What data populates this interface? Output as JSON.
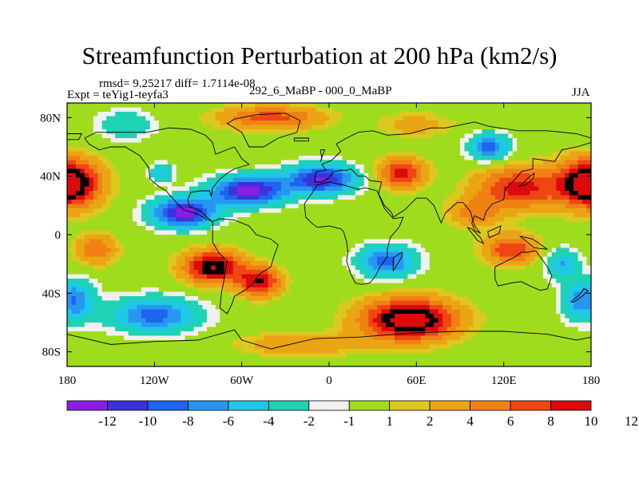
{
  "title": "Streamfunction Perturbation at 200 hPa (km2/s)",
  "stats_line": "rmsd= 9.25217 diff= 1.7114e-08",
  "expt_line": "Expt = teYig1-teyfa3",
  "center_line": "292_6_MaBP - 000_0_MaBP",
  "season": "JJA",
  "chart_data": {
    "type": "heatmap",
    "variable": "Streamfunction Perturbation",
    "level": "200 hPa",
    "units": "km2/s",
    "lon_range": [
      -180,
      180
    ],
    "lat_range": [
      -90,
      90
    ],
    "x_ticks": [
      {
        "value": -180,
        "label": "180"
      },
      {
        "value": -120,
        "label": "120W"
      },
      {
        "value": -60,
        "label": "60W"
      },
      {
        "value": 0,
        "label": "0"
      },
      {
        "value": 60,
        "label": "60E"
      },
      {
        "value": 120,
        "label": "120E"
      },
      {
        "value": 180,
        "label": "180"
      }
    ],
    "y_ticks": [
      {
        "value": 80,
        "label": "80N"
      },
      {
        "value": 40,
        "label": "40N"
      },
      {
        "value": 0,
        "label": "0"
      },
      {
        "value": -40,
        "label": "40S"
      },
      {
        "value": -80,
        "label": "80S"
      }
    ],
    "colorbar": {
      "colors": [
        "#8a1ee6",
        "#3c32dc",
        "#1e64f0",
        "#2896f0",
        "#1ec8e6",
        "#1ed2b4",
        "#f0f0f0",
        "#a0dc1e",
        "#dcc81e",
        "#eba514",
        "#f08214",
        "#f04614",
        "#dc0a0a"
      ],
      "labels": [
        "-12",
        "-10",
        "-8",
        "-6",
        "-4",
        "-2",
        "-1",
        "1",
        "2",
        "4",
        "6",
        "8",
        "10",
        "12"
      ],
      "bounds": [
        -12,
        -10,
        -8,
        -6,
        -4,
        -2,
        -1,
        1,
        2,
        4,
        6,
        8,
        10,
        12
      ]
    },
    "features": [
      {
        "lon": -180,
        "lat": 35,
        "amp": 15,
        "sx": 22,
        "sy": 16
      },
      {
        "lon": 180,
        "lat": 35,
        "amp": 15,
        "sx": 22,
        "sy": 16
      },
      {
        "lon": 130,
        "lat": 32,
        "amp": 9,
        "sx": 28,
        "sy": 14
      },
      {
        "lon": -100,
        "lat": 15,
        "amp": -13,
        "sx": 22,
        "sy": 10
      },
      {
        "lon": -55,
        "lat": 30,
        "amp": -13,
        "sx": 26,
        "sy": 10
      },
      {
        "lon": -5,
        "lat": 38,
        "amp": -12,
        "sx": 24,
        "sy": 10
      },
      {
        "lon": 50,
        "lat": 42,
        "amp": 9,
        "sx": 16,
        "sy": 10
      },
      {
        "lon": 110,
        "lat": 60,
        "amp": -9,
        "sx": 14,
        "sy": 9
      },
      {
        "lon": -40,
        "lat": 80,
        "amp": 7,
        "sx": 35,
        "sy": 8
      },
      {
        "lon": -115,
        "lat": 42,
        "amp": -6,
        "sx": 8,
        "sy": 6
      },
      {
        "lon": 40,
        "lat": -18,
        "amp": -9,
        "sx": 20,
        "sy": 11
      },
      {
        "lon": -80,
        "lat": -22,
        "amp": 12,
        "sx": 20,
        "sy": 11
      },
      {
        "lon": -48,
        "lat": -32,
        "amp": 10,
        "sx": 15,
        "sy": 10
      },
      {
        "lon": 55,
        "lat": -58,
        "amp": 14,
        "sx": 32,
        "sy": 14
      },
      {
        "lon": -120,
        "lat": -55,
        "amp": -9,
        "sx": 30,
        "sy": 12
      },
      {
        "lon": -175,
        "lat": -45,
        "amp": -8,
        "sx": 14,
        "sy": 14
      },
      {
        "lon": 175,
        "lat": -45,
        "amp": -8,
        "sx": 14,
        "sy": 14
      },
      {
        "lon": 125,
        "lat": -10,
        "amp": 8,
        "sx": 18,
        "sy": 10
      },
      {
        "lon": -160,
        "lat": -10,
        "amp": 6,
        "sx": 14,
        "sy": 10
      },
      {
        "lon": 160,
        "lat": -20,
        "amp": -6,
        "sx": 12,
        "sy": 10
      },
      {
        "lon": -140,
        "lat": 75,
        "amp": -4,
        "sx": 20,
        "sy": 10
      },
      {
        "lon": 60,
        "lat": 75,
        "amp": 3,
        "sx": 25,
        "sy": 8
      },
      {
        "lon": 100,
        "lat": 15,
        "amp": 5,
        "sx": 18,
        "sy": 10
      },
      {
        "lon": -20,
        "lat": -75,
        "amp": 4,
        "sx": 40,
        "sy": 8
      }
    ]
  }
}
